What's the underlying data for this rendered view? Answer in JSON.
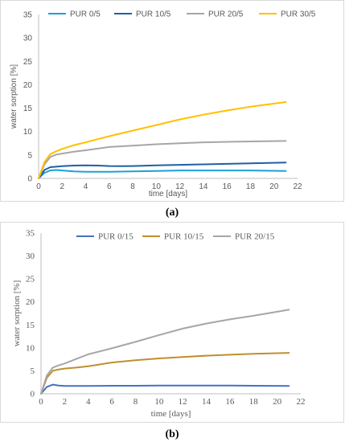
{
  "chart_data": [
    {
      "type": "line",
      "panel_label": "(a)",
      "xlabel": "time [days]",
      "ylabel": "water sorption [%]",
      "xlim": [
        0,
        22
      ],
      "ylim": [
        0,
        35
      ],
      "xticks": [
        0,
        2,
        4,
        6,
        8,
        10,
        12,
        14,
        16,
        18,
        20,
        22
      ],
      "yticks": [
        0,
        5,
        10,
        15,
        20,
        25,
        30,
        35
      ],
      "grid": false,
      "legend_position": "top",
      "series": [
        {
          "name": "PUR 0/5",
          "color": "#1BA1D8",
          "x": [
            0,
            0.5,
            1,
            1.5,
            2,
            3,
            4,
            6,
            8,
            10,
            12,
            14,
            16,
            18,
            21
          ],
          "y": [
            0,
            1.2,
            1.7,
            1.8,
            1.7,
            1.5,
            1.4,
            1.4,
            1.5,
            1.6,
            1.7,
            1.7,
            1.7,
            1.7,
            1.6
          ]
        },
        {
          "name": "PUR 10/5",
          "color": "#1F5FA6",
          "x": [
            0,
            0.5,
            1,
            1.5,
            2,
            3,
            4,
            5,
            6,
            7,
            8,
            10,
            12,
            14,
            16,
            18,
            21
          ],
          "y": [
            0,
            1.8,
            2.4,
            2.5,
            2.6,
            2.75,
            2.8,
            2.75,
            2.65,
            2.6,
            2.65,
            2.8,
            2.9,
            3.0,
            3.1,
            3.2,
            3.4
          ]
        },
        {
          "name": "PUR 20/5",
          "color": "#A6A6A6",
          "x": [
            0,
            0.5,
            1,
            1.5,
            2,
            3,
            4,
            6,
            8,
            10,
            12,
            14,
            16,
            18,
            21
          ],
          "y": [
            0,
            3.0,
            4.6,
            5.1,
            5.3,
            5.7,
            6.0,
            6.7,
            7.0,
            7.3,
            7.5,
            7.7,
            7.8,
            7.9,
            8.0
          ]
        },
        {
          "name": "PUR 30/5",
          "color": "#FFC000",
          "x": [
            0,
            0.5,
            1,
            1.5,
            2,
            3,
            4,
            6,
            8,
            10,
            12,
            14,
            16,
            18,
            21
          ],
          "y": [
            0,
            3.5,
            5.2,
            5.8,
            6.3,
            7.1,
            7.7,
            9.0,
            10.2,
            11.4,
            12.6,
            13.6,
            14.5,
            15.3,
            16.3
          ]
        }
      ]
    },
    {
      "type": "line",
      "panel_label": "(b)",
      "xlabel": "time [days]",
      "ylabel": "water sorption [%]",
      "xlim": [
        0,
        22
      ],
      "ylim": [
        0,
        35
      ],
      "xticks": [
        0,
        2,
        4,
        6,
        8,
        10,
        12,
        14,
        16,
        18,
        20,
        22
      ],
      "yticks": [
        0,
        5,
        10,
        15,
        20,
        25,
        30,
        35
      ],
      "grid": false,
      "legend_position": "top",
      "series": [
        {
          "name": "PUR 0/15",
          "color": "#4472C4",
          "x": [
            0,
            0.5,
            1,
            1.5,
            2,
            3,
            4,
            6,
            8,
            10,
            12,
            14,
            16,
            18,
            21
          ],
          "y": [
            0,
            1.5,
            2.0,
            1.8,
            1.7,
            1.7,
            1.7,
            1.75,
            1.75,
            1.8,
            1.8,
            1.8,
            1.8,
            1.75,
            1.7
          ]
        },
        {
          "name": "PUR 10/15",
          "color": "#BF8F2F",
          "x": [
            0,
            0.5,
            1,
            1.5,
            2,
            3,
            4,
            6,
            8,
            10,
            12,
            14,
            16,
            18,
            21
          ],
          "y": [
            0,
            3.5,
            5.0,
            5.3,
            5.5,
            5.7,
            6.0,
            6.8,
            7.3,
            7.7,
            8.0,
            8.3,
            8.5,
            8.7,
            8.9
          ]
        },
        {
          "name": "PUR 20/15",
          "color": "#A6A6A6",
          "x": [
            0,
            0.5,
            1,
            1.5,
            2,
            3,
            4,
            6,
            8,
            10,
            12,
            14,
            16,
            18,
            21
          ],
          "y": [
            0,
            4.0,
            5.7,
            6.2,
            6.6,
            7.6,
            8.6,
            9.9,
            11.3,
            12.8,
            14.2,
            15.3,
            16.2,
            17.0,
            18.3
          ]
        }
      ]
    }
  ]
}
